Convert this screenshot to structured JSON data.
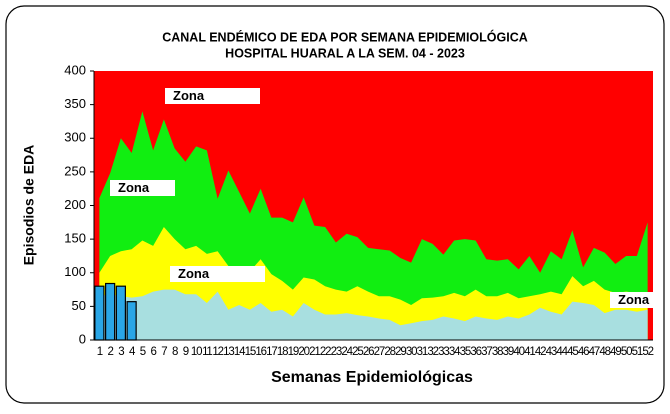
{
  "chart_data": {
    "type": "area",
    "title": "CANAL ENDÉMICO DE EDA POR SEMANA EPIDEMIOLÓGICA",
    "subtitle": "HOSPITAL HUARAL A LA SEM. 04 - 2023",
    "x_label": "Semanas Epidemiológicas",
    "y_label": "Episodios de EDA",
    "categories": [
      1,
      2,
      3,
      4,
      5,
      6,
      7,
      8,
      9,
      10,
      11,
      12,
      13,
      14,
      15,
      16,
      17,
      18,
      19,
      20,
      21,
      22,
      23,
      24,
      25,
      26,
      27,
      28,
      29,
      30,
      31,
      32,
      33,
      34,
      35,
      36,
      37,
      38,
      39,
      40,
      41,
      42,
      43,
      44,
      45,
      46,
      47,
      48,
      49,
      50,
      51,
      52
    ],
    "ylim": [
      0,
      400
    ],
    "yticks": [
      0,
      50,
      100,
      150,
      200,
      250,
      300,
      350,
      400
    ],
    "background_color": "#ff0000",
    "annotations": [
      "Zona",
      "Zona",
      "Zona",
      "Zona"
    ],
    "series": [
      {
        "type": "area",
        "color": "#11ee11",
        "values": [
          211,
          248,
          300,
          278,
          340,
          282,
          328,
          285,
          265,
          288,
          282,
          210,
          252,
          220,
          188,
          225,
          182,
          182,
          175,
          212,
          170,
          168,
          145,
          158,
          153,
          137,
          135,
          133,
          122,
          115,
          150,
          143,
          127,
          148,
          150,
          148,
          120,
          118,
          120,
          105,
          125,
          100,
          132,
          120,
          163,
          108,
          137,
          130,
          113,
          125,
          125,
          175
        ]
      },
      {
        "type": "area",
        "color": "#ffff00",
        "values": [
          100,
          125,
          132,
          135,
          148,
          140,
          168,
          150,
          135,
          140,
          128,
          132,
          110,
          105,
          102,
          120,
          98,
          88,
          75,
          93,
          90,
          80,
          75,
          72,
          80,
          72,
          65,
          65,
          60,
          52,
          62,
          63,
          65,
          70,
          65,
          75,
          65,
          65,
          70,
          62,
          65,
          68,
          72,
          68,
          95,
          80,
          88,
          75,
          70,
          72,
          70,
          70
        ]
      },
      {
        "type": "area",
        "color": "#a8dfe0",
        "values": [
          65,
          68,
          65,
          63,
          65,
          72,
          75,
          75,
          68,
          68,
          55,
          72,
          45,
          52,
          45,
          55,
          42,
          45,
          35,
          55,
          45,
          38,
          38,
          40,
          37,
          35,
          32,
          30,
          22,
          25,
          28,
          30,
          35,
          32,
          28,
          35,
          32,
          30,
          35,
          32,
          38,
          48,
          42,
          38,
          57,
          55,
          52,
          40,
          45,
          45,
          42,
          45
        ]
      },
      {
        "type": "bar",
        "color": "#2aa6e6",
        "values": [
          80,
          84,
          80,
          57,
          null,
          null,
          null,
          null,
          null,
          null,
          null,
          null,
          null,
          null,
          null,
          null,
          null,
          null,
          null,
          null,
          null,
          null,
          null,
          null,
          null,
          null,
          null,
          null,
          null,
          null,
          null,
          null,
          null,
          null,
          null,
          null,
          null,
          null,
          null,
          null,
          null,
          null,
          null,
          null,
          null,
          null,
          null,
          null,
          null,
          null,
          null,
          null
        ]
      }
    ]
  }
}
